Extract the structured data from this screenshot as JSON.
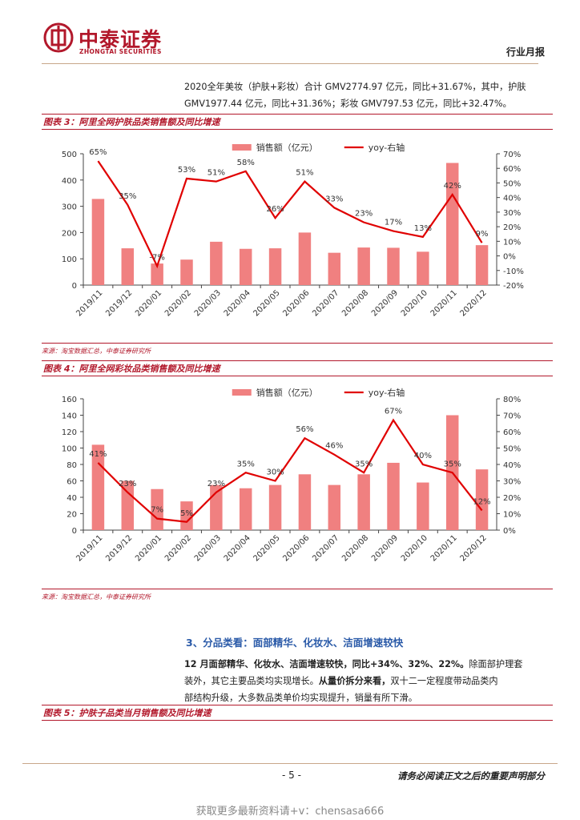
{
  "header": {
    "logo_cn": "中泰证券",
    "logo_en": "ZHONGTAI SECURITIES",
    "report_type": "行业月报"
  },
  "intro": {
    "line1": "2020全年美妆（护肤+彩妆）合计 GMV2774.97 亿元，同比+31.67%，其中，护肤",
    "line2": "GMV1977.44 亿元，同比+31.36%；彩妆 GMV797.53 亿元，同比+32.47%。"
  },
  "figure3": {
    "title": "图表 3：阿里全网护肤品类销售额及同比增速",
    "source": "来源：淘宝数据汇总，中泰证券研究所"
  },
  "figure4": {
    "title": "图表 4：阿里全网彩妆品类销售额及同比增速",
    "source": "来源：淘宝数据汇总，中泰证券研究所"
  },
  "section3": {
    "heading": "3、分品类看：面部精华、化妆水、洁面增速较快",
    "p_line1_bold": "12 月面部精华、化妆水、洁面增速较快，同比+34%、32%、22%。",
    "p_line1_rest": "除面部护理套",
    "p_line2_a": "装外，其它主要品类均实现增长。",
    "p_line2_bold": "从量价拆分来看，",
    "p_line2_b": "双十二一定程度带动品类内",
    "p_line3": "部结构升级，大多数品类单价均实现提升，销量有所下滑。"
  },
  "figure5": {
    "title": "图表 5：护肤子品类当月销售额及同比增速"
  },
  "footer": {
    "page": "- 5 -",
    "disclaimer": "请务必阅读正文之后的重要声明部分",
    "watermark": "获取更多最新资料请+v：chensasa666"
  },
  "colors": {
    "bar": "#f08080",
    "line": "#e00000",
    "brand": "#b2182b",
    "section": "#2a5aa8"
  },
  "chart_data": [
    {
      "type": "bar",
      "categories": [
        "2019/11",
        "2019/12",
        "2020/01",
        "2020/02",
        "2020/03",
        "2020/04",
        "2020/05",
        "2020/06",
        "2020/07",
        "2020/08",
        "2020/09",
        "2020/10",
        "2020/11",
        "2020/12"
      ],
      "series": [
        {
          "name": "销售额（亿元）",
          "type": "bar",
          "axis": "left",
          "values": [
            328,
            140,
            82,
            97,
            165,
            138,
            140,
            200,
            123,
            143,
            142,
            127,
            465,
            152
          ]
        },
        {
          "name": "yoy-右轴",
          "type": "line",
          "axis": "right",
          "values": [
            65,
            35,
            -7,
            53,
            51,
            58,
            26,
            51,
            33,
            23,
            17,
            13,
            42,
            9
          ],
          "labels": [
            "65%",
            "35%",
            "-7%",
            "53%",
            "51%",
            "58%",
            "26%",
            "51%",
            "33%",
            "23%",
            "17%",
            "13%",
            "42%",
            "9%"
          ]
        }
      ],
      "ylim": [
        0,
        500
      ],
      "yticks": [
        "0",
        "100",
        "200",
        "300",
        "400",
        "500"
      ],
      "y2lim": [
        -20,
        70
      ],
      "y2ticks": [
        "-20%",
        "-10%",
        "0%",
        "10%",
        "20%",
        "30%",
        "40%",
        "50%",
        "60%",
        "70%"
      ],
      "legend": "top-center",
      "grid": false
    },
    {
      "type": "bar",
      "categories": [
        "2019/11",
        "2019/12",
        "2020/01",
        "2020/02",
        "2020/03",
        "2020/04",
        "2020/05",
        "2020/06",
        "2020/07",
        "2020/08",
        "2020/09",
        "2020/10",
        "2020/11",
        "2020/12"
      ],
      "series": [
        {
          "name": "销售额（亿元）",
          "type": "bar",
          "axis": "left",
          "values": [
            104,
            60,
            50,
            35,
            55,
            51,
            55,
            68,
            55,
            68,
            82,
            58,
            140,
            74
          ]
        },
        {
          "name": "yoy-右轴",
          "type": "line",
          "axis": "right",
          "values": [
            41,
            23,
            7,
            5,
            23,
            35,
            30,
            56,
            46,
            35,
            67,
            40,
            35,
            12
          ],
          "labels": [
            "41%",
            "23%",
            "7%",
            "5%",
            "23%",
            "35%",
            "30%",
            "56%",
            "46%",
            "35%",
            "67%",
            "40%",
            "35%",
            "12%"
          ]
        }
      ],
      "ylim": [
        0,
        160
      ],
      "yticks": [
        "0",
        "20",
        "40",
        "60",
        "80",
        "100",
        "120",
        "140",
        "160"
      ],
      "y2lim": [
        0,
        80
      ],
      "y2ticks": [
        "0%",
        "10%",
        "20%",
        "30%",
        "40%",
        "50%",
        "60%",
        "70%",
        "80%"
      ],
      "legend": "top-center",
      "grid": false
    }
  ]
}
